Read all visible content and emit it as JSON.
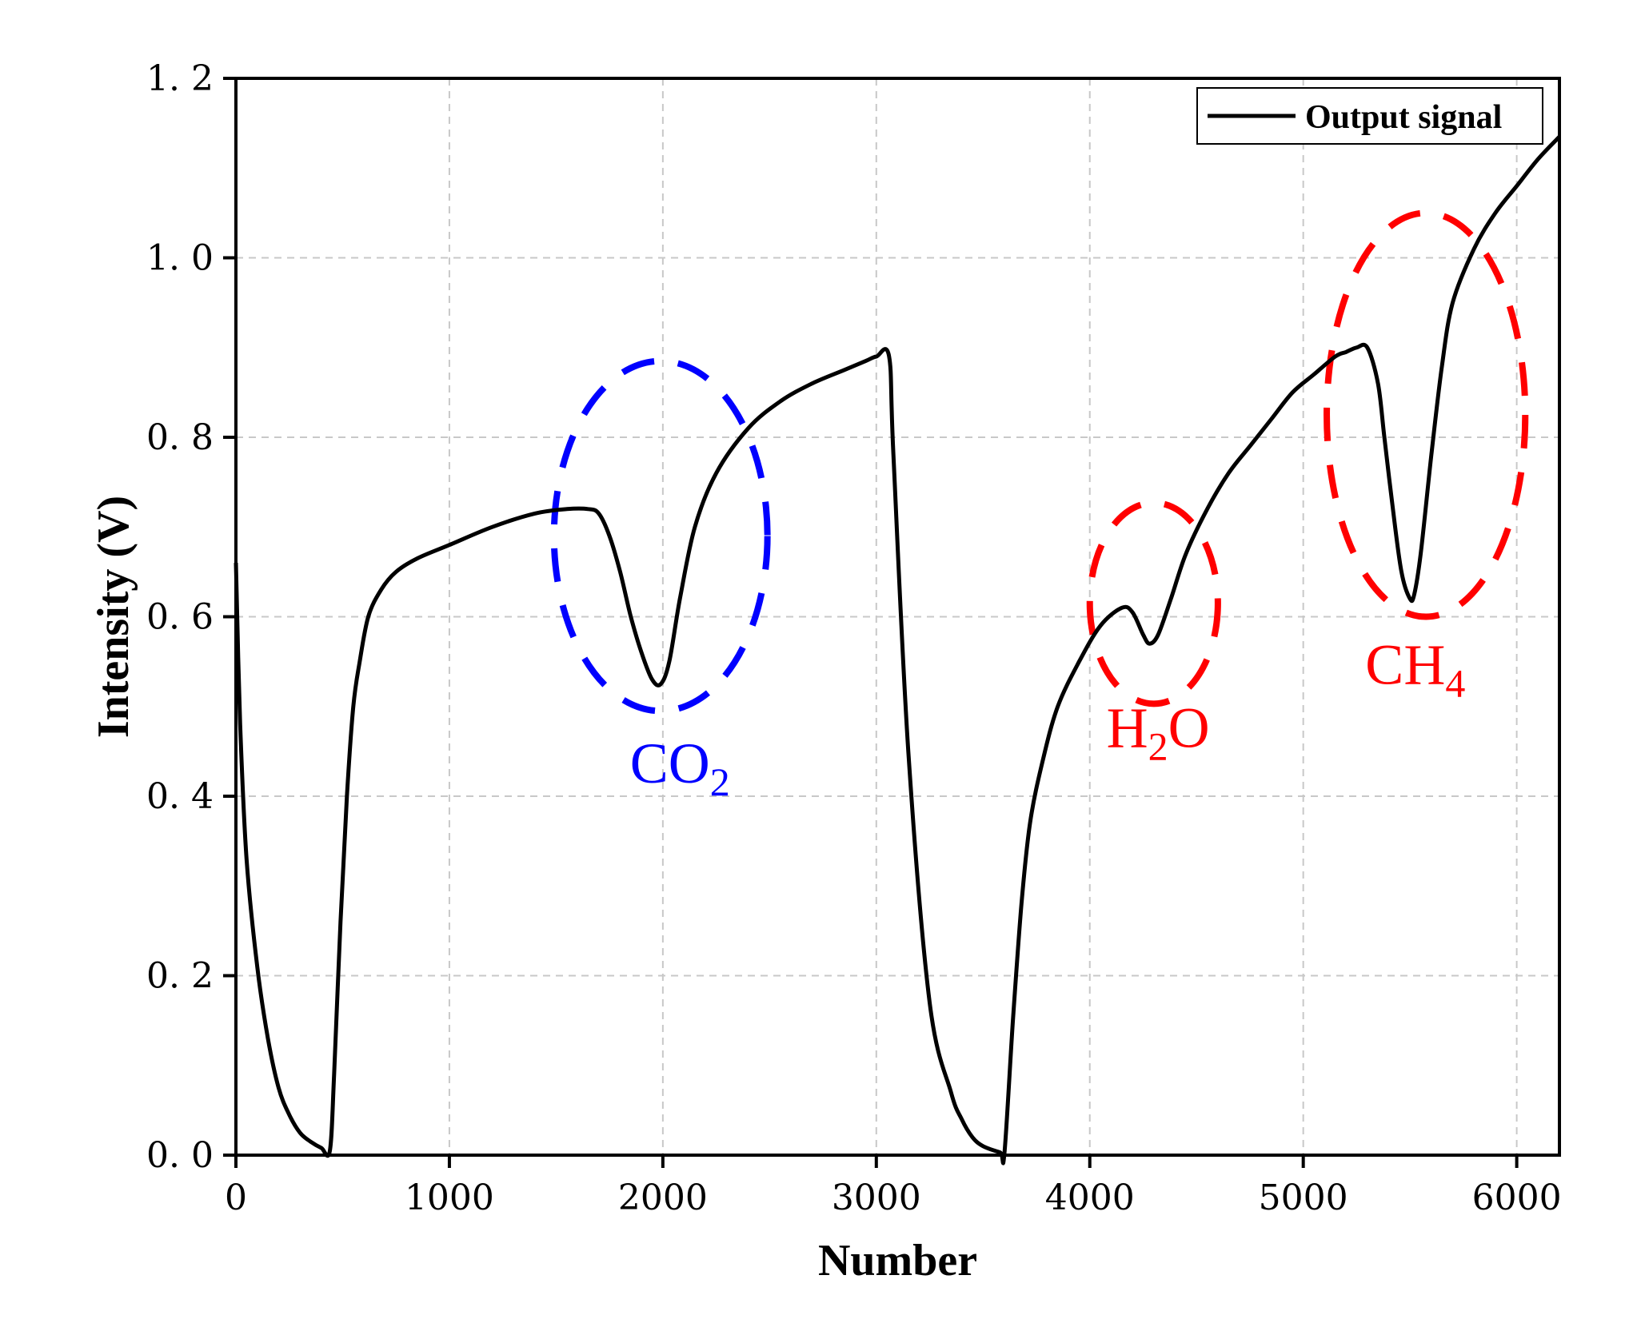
{
  "chart_data": {
    "type": "line",
    "title": "",
    "xlabel": "Number",
    "ylabel": "Intensity (V)",
    "xlim": [
      0,
      6200
    ],
    "ylim": [
      0,
      1.2
    ],
    "xticks": [
      0,
      1000,
      2000,
      3000,
      4000,
      5000,
      6000
    ],
    "xtick_labels": [
      "0",
      "1000",
      "2000",
      "3000",
      "4000",
      "5000",
      "6000"
    ],
    "yticks": [
      0,
      0.2,
      0.4,
      0.6,
      0.8,
      1.0,
      1.2
    ],
    "ytick_labels": [
      "0. 0",
      "0. 2",
      "0. 4",
      "0. 6",
      "0. 8",
      "1. 0",
      "1. 2"
    ],
    "grid": true,
    "legend": {
      "position": "top-right",
      "entries": [
        "Output signal"
      ]
    },
    "series": [
      {
        "name": "Output signal",
        "color": "#000000",
        "x": [
          0,
          20,
          50,
          100,
          150,
          200,
          250,
          300,
          350,
          400,
          440,
          460,
          490,
          520,
          550,
          580,
          620,
          680,
          750,
          850,
          1000,
          1200,
          1400,
          1550,
          1650,
          1700,
          1750,
          1800,
          1850,
          1900,
          1950,
          1990,
          2030,
          2080,
          2150,
          2250,
          2400,
          2550,
          2700,
          2850,
          2950,
          3000,
          3060,
          3080,
          3150,
          3250,
          3350,
          3400,
          3450,
          3500,
          3580,
          3600,
          3640,
          3680,
          3720,
          3780,
          3850,
          3950,
          4050,
          4150,
          4200,
          4250,
          4280,
          4320,
          4380,
          4450,
          4550,
          4650,
          4750,
          4850,
          4950,
          5050,
          5150,
          5200,
          5250,
          5300,
          5350,
          5380,
          5420,
          5460,
          5500,
          5520,
          5550,
          5600,
          5650,
          5700,
          5800,
          5900,
          6000,
          6100,
          6200
        ],
        "y": [
          0.66,
          0.48,
          0.33,
          0.21,
          0.13,
          0.075,
          0.045,
          0.025,
          0.015,
          0.008,
          0.005,
          0.09,
          0.26,
          0.4,
          0.5,
          0.55,
          0.6,
          0.63,
          0.65,
          0.665,
          0.68,
          0.7,
          0.715,
          0.72,
          0.72,
          0.715,
          0.69,
          0.65,
          0.6,
          0.56,
          0.53,
          0.525,
          0.55,
          0.62,
          0.7,
          0.76,
          0.81,
          0.84,
          0.86,
          0.875,
          0.885,
          0.89,
          0.89,
          0.78,
          0.45,
          0.17,
          0.07,
          0.04,
          0.02,
          0.01,
          0.003,
          0.002,
          0.15,
          0.28,
          0.37,
          0.44,
          0.5,
          0.55,
          0.59,
          0.61,
          0.605,
          0.58,
          0.57,
          0.58,
          0.62,
          0.67,
          0.72,
          0.76,
          0.79,
          0.82,
          0.85,
          0.87,
          0.89,
          0.895,
          0.9,
          0.9,
          0.86,
          0.8,
          0.72,
          0.65,
          0.62,
          0.625,
          0.67,
          0.78,
          0.88,
          0.95,
          1.01,
          1.05,
          1.08,
          1.11,
          1.135
        ]
      }
    ],
    "annotations": [
      {
        "label": "CO",
        "subscript": "2",
        "color": "#0000ff",
        "ellipse": {
          "cx": 1990,
          "cy": 0.69,
          "rx": 500,
          "ry": 0.195
        },
        "text_at": {
          "x": 2080,
          "y": 0.415
        }
      },
      {
        "label": "H",
        "subscript": "2",
        "suffix": "O",
        "color": "#ff0000",
        "ellipse": {
          "cx": 4300,
          "cy": 0.615,
          "rx": 300,
          "ry": 0.112
        },
        "text_at": {
          "x": 4320,
          "y": 0.455
        }
      },
      {
        "label": "CH",
        "subscript": "4",
        "color": "#ff0000",
        "ellipse": {
          "cx": 5575,
          "cy": 0.825,
          "rx": 465,
          "ry": 0.225
        },
        "text_at": {
          "x": 5525,
          "y": 0.525
        }
      }
    ]
  }
}
